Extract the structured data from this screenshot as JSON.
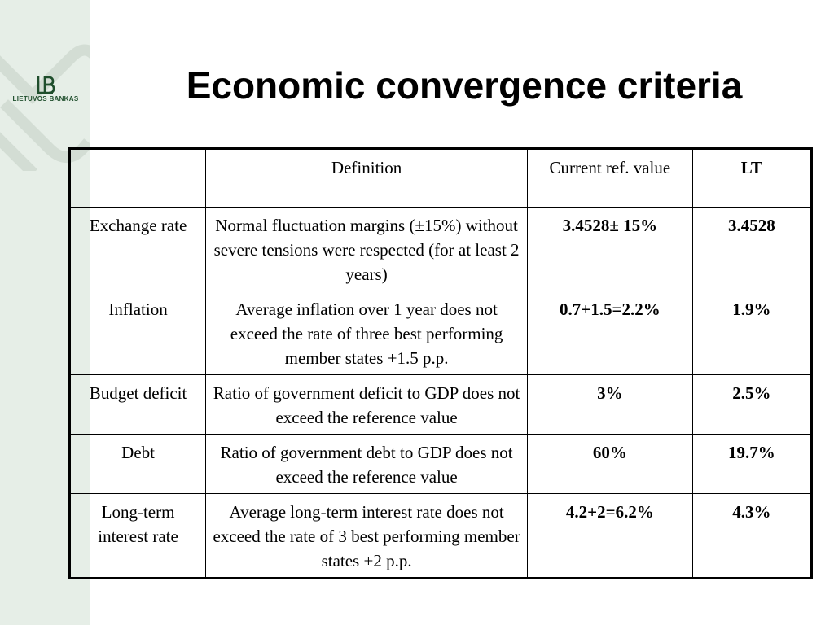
{
  "title": "Economic convergence criteria",
  "logo": {
    "text": "LIETUVOS BANKAS"
  },
  "colors": {
    "side_band": "#e6eee7",
    "lt_value": "#19b28a",
    "logo": "#1f4e2c"
  },
  "table": {
    "headers": [
      "",
      "Definition",
      "Current ref. value",
      "LT"
    ],
    "rows": [
      {
        "criterion": "Exchange rate",
        "definition": "Normal fluctuation margins (±15%) without severe tensions were respected (for at least 2 years)",
        "ref_value": "3.4528± 15%",
        "lt": "3.4528"
      },
      {
        "criterion": "Inflation",
        "definition": "Average inflation over 1 year does not exceed the rate of three best performing member states +1.5 p.p.",
        "ref_value": "0.7+1.5=2.2%",
        "lt": "1.9%"
      },
      {
        "criterion": "Budget deficit",
        "definition": "Ratio of government deficit to GDP does not exceed the reference value",
        "ref_value": "3%",
        "lt": "2.5%"
      },
      {
        "criterion": "Debt",
        "definition": "Ratio of government debt to GDP does not exceed the reference value",
        "ref_value": "60%",
        "lt": "19.7%"
      },
      {
        "criterion": "Long-term interest rate",
        "definition": "Average long-term interest rate does not exceed the rate of 3 best performing member states +2 p.p.",
        "ref_value": "4.2+2=6.2%",
        "lt": "4.3%"
      }
    ]
  }
}
